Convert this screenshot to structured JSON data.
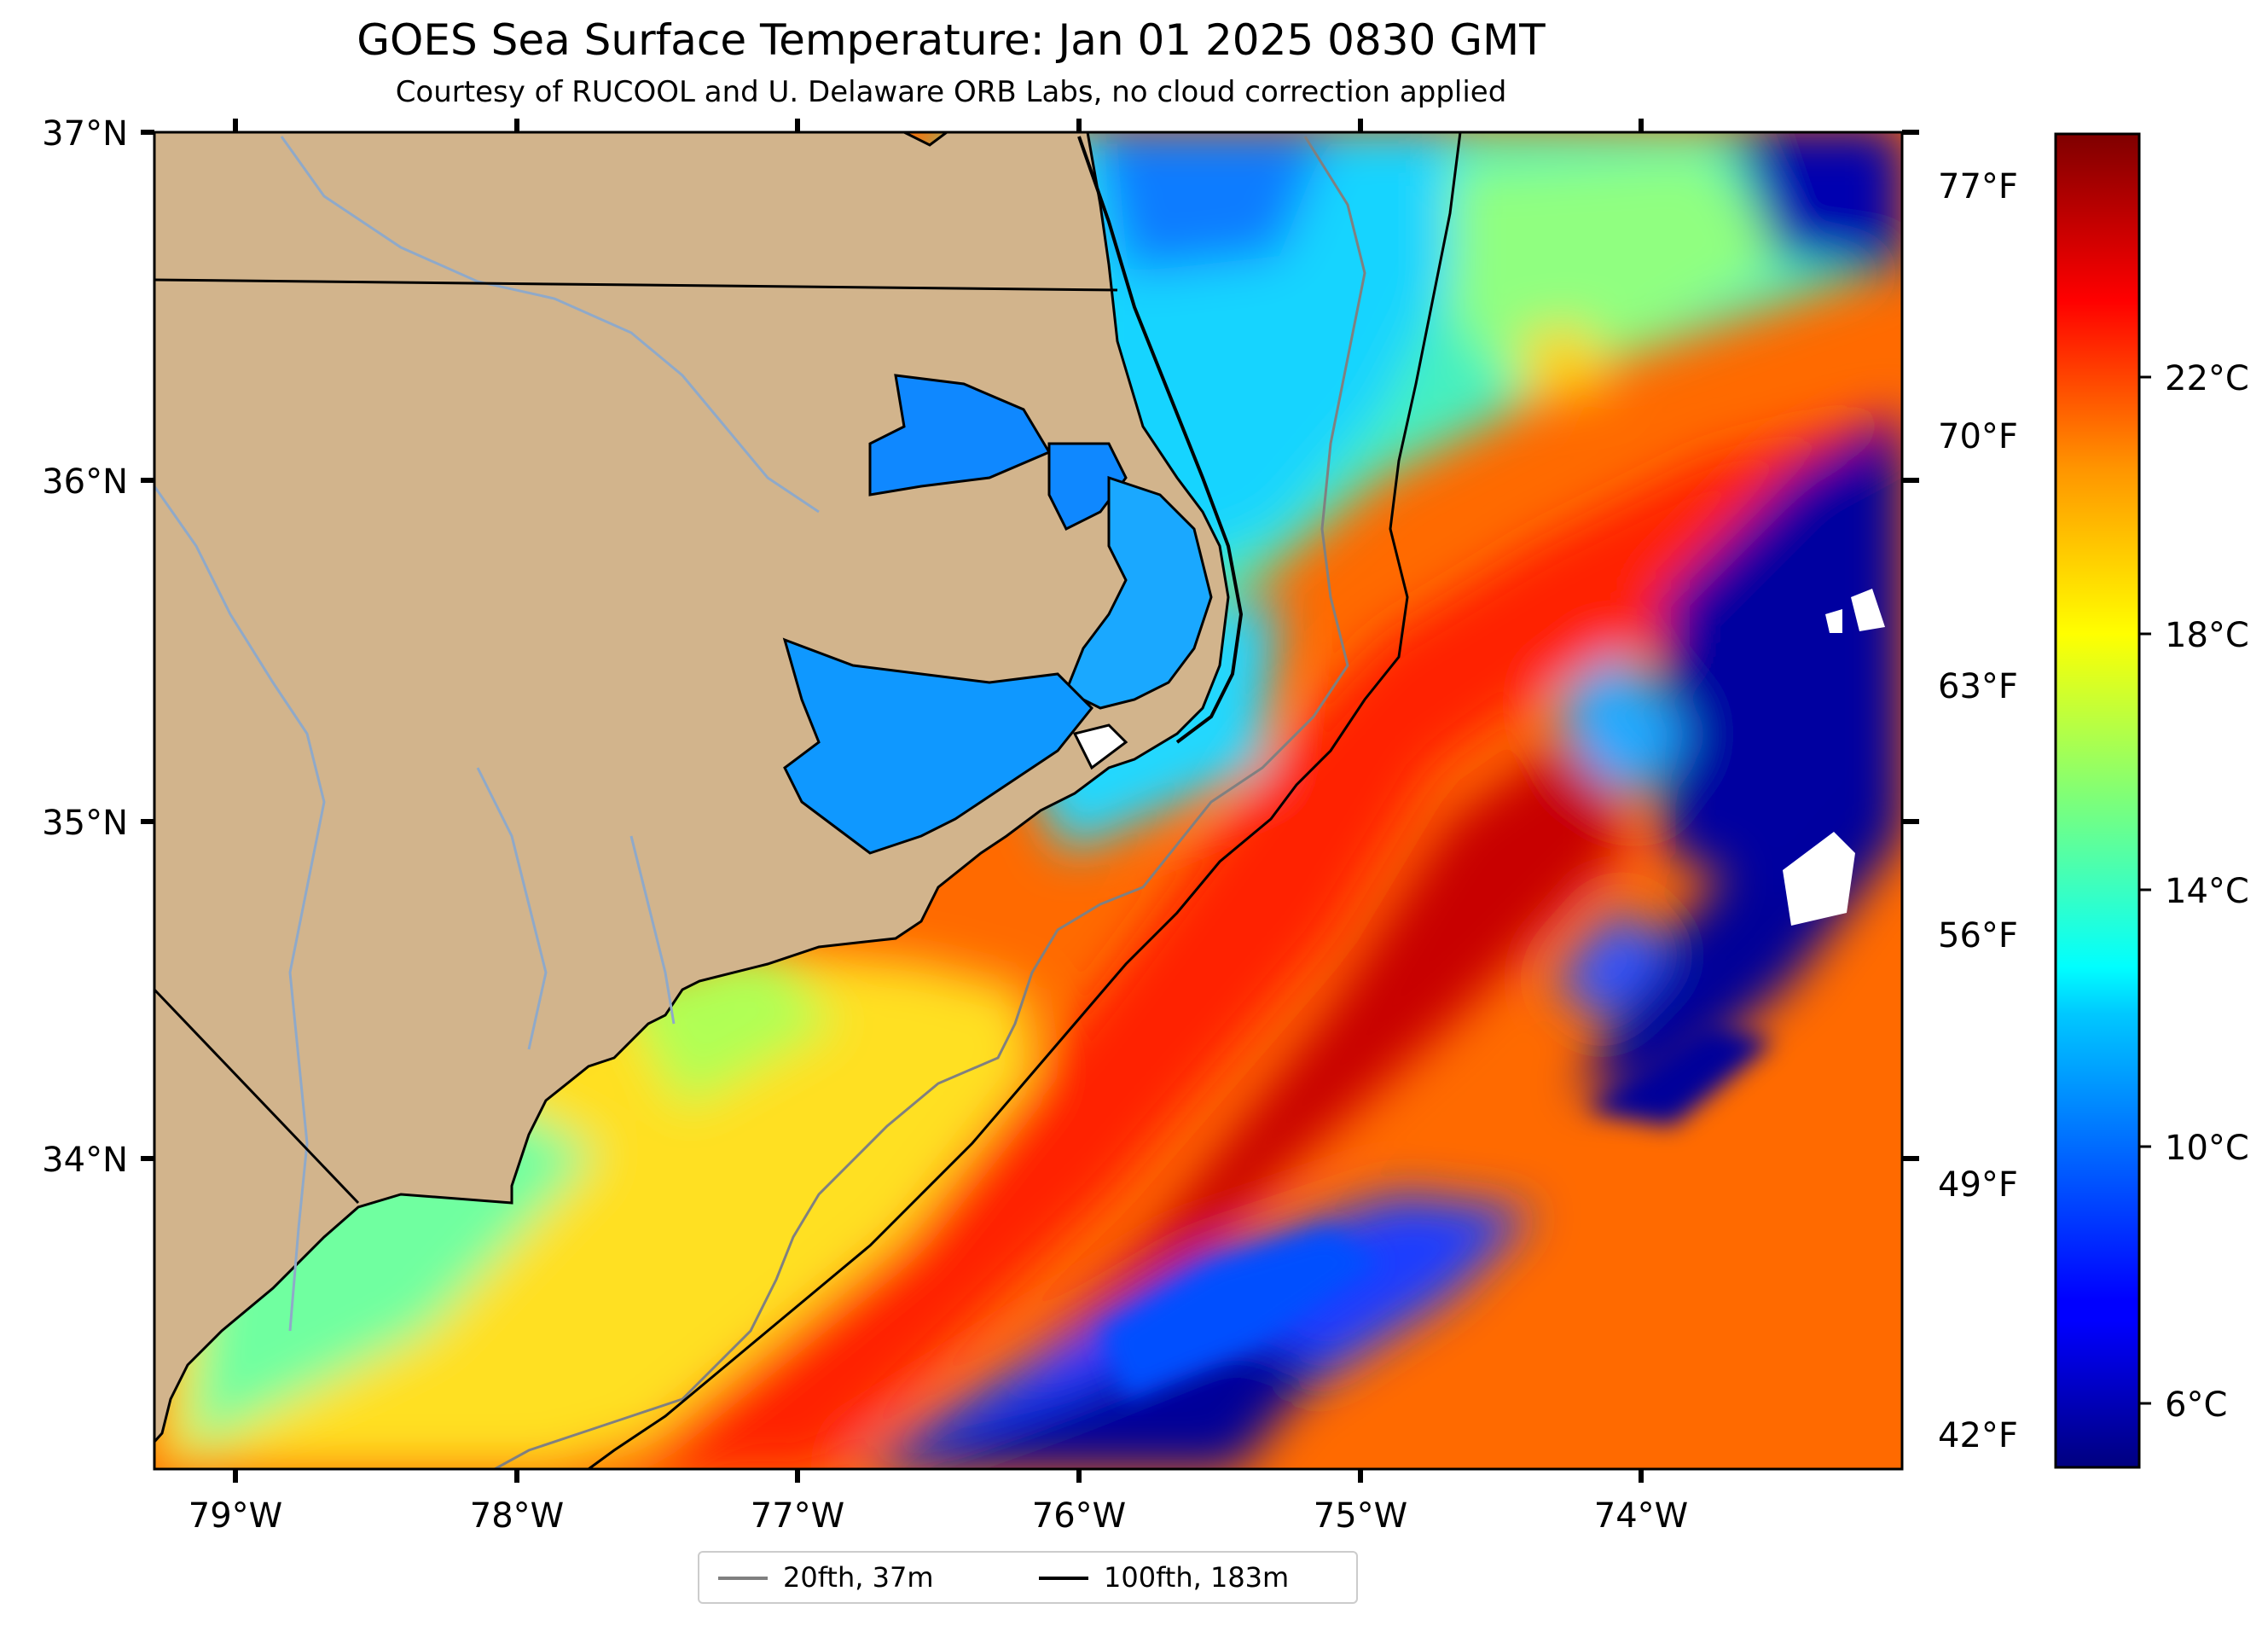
{
  "header": {
    "title": "GOES Sea Surface Temperature: Jan 01 2025 0830 GMT",
    "subtitle": "Courtesy of RUCOOL and U. Delaware ORB Labs, no cloud correction applied"
  },
  "map": {
    "lon_range": [
      -79.3,
      -73.1
    ],
    "lat_range": [
      33.1,
      37.0
    ],
    "lat_ticks": [
      "37°N",
      "36°N",
      "35°N",
      "34°N"
    ],
    "lon_ticks": [
      "79°W",
      "78°W",
      "77°W",
      "76°W",
      "75°W",
      "74°W"
    ],
    "fahrenheit_ticks": [
      "77°F",
      "70°F",
      "63°F",
      "56°F",
      "49°F",
      "42°F"
    ],
    "colors": {
      "land": "#d2b48c",
      "coastline": "#000000",
      "rivers": "#8fa9c9",
      "isobath_20fth": "#808080",
      "isobath_100fth": "#000000",
      "no_data": "#ffffff"
    }
  },
  "colorbar": {
    "colormap": "jet",
    "tick_labels": [
      "22°C",
      "18°C",
      "14°C",
      "10°C",
      "6°C"
    ],
    "range_c": [
      4.5,
      25.3
    ]
  },
  "legend": {
    "items": [
      {
        "label": "20fth, 37m",
        "color": "#808080"
      },
      {
        "label": "100fth, 183m",
        "color": "#000000"
      }
    ]
  }
}
